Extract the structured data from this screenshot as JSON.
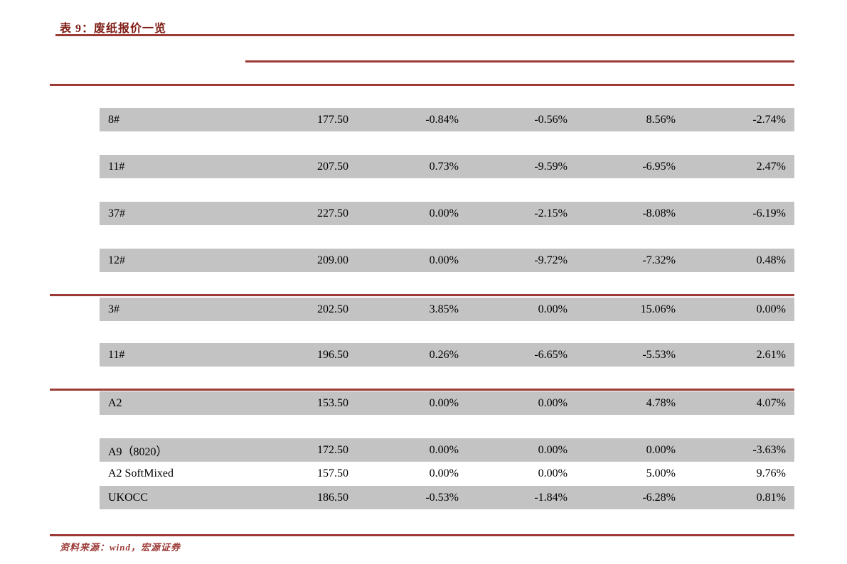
{
  "title": "表 9：废纸报价一览",
  "source_note": "资料来源：wind，宏源证券",
  "colors": {
    "accent_line": "#9c3a36",
    "title_text": "#7e1c15",
    "row_background": "#c3c3c3",
    "highlight_row_background": "#ffffff",
    "body_text": "#000000"
  },
  "table": {
    "rows": [
      {
        "name": "8#",
        "price": "177.50",
        "chg_a": "-0.84%",
        "chg_b": "-0.56%",
        "chg_c": "8.56%",
        "chg_d": "-2.74%"
      },
      {
        "name": "11#",
        "price": "207.50",
        "chg_a": "0.73%",
        "chg_b": "-9.59%",
        "chg_c": "-6.95%",
        "chg_d": "2.47%"
      },
      {
        "name": "37#",
        "price": "227.50",
        "chg_a": "0.00%",
        "chg_b": "-2.15%",
        "chg_c": "-8.08%",
        "chg_d": "-6.19%"
      },
      {
        "name": "12#",
        "price": "209.00",
        "chg_a": "0.00%",
        "chg_b": "-9.72%",
        "chg_c": "-7.32%",
        "chg_d": "0.48%"
      },
      {
        "name": "3#",
        "price": "202.50",
        "chg_a": "3.85%",
        "chg_b": "0.00%",
        "chg_c": "15.06%",
        "chg_d": "0.00%"
      },
      {
        "name": "11#",
        "price": "196.50",
        "chg_a": "0.26%",
        "chg_b": "-6.65%",
        "chg_c": "-5.53%",
        "chg_d": "2.61%"
      },
      {
        "name": "A2",
        "price": "153.50",
        "chg_a": "0.00%",
        "chg_b": "0.00%",
        "chg_c": "4.78%",
        "chg_d": "4.07%"
      },
      {
        "name": "A9（8020）",
        "price": "172.50",
        "chg_a": "0.00%",
        "chg_b": "0.00%",
        "chg_c": "0.00%",
        "chg_d": "-3.63%"
      },
      {
        "name": "A2 SoftMixed",
        "price": "157.50",
        "chg_a": "0.00%",
        "chg_b": "0.00%",
        "chg_c": "5.00%",
        "chg_d": "9.76%"
      },
      {
        "name": "UKOCC",
        "price": "186.50",
        "chg_a": "-0.53%",
        "chg_b": "-1.84%",
        "chg_c": "-6.28%",
        "chg_d": "0.81%"
      }
    ]
  }
}
